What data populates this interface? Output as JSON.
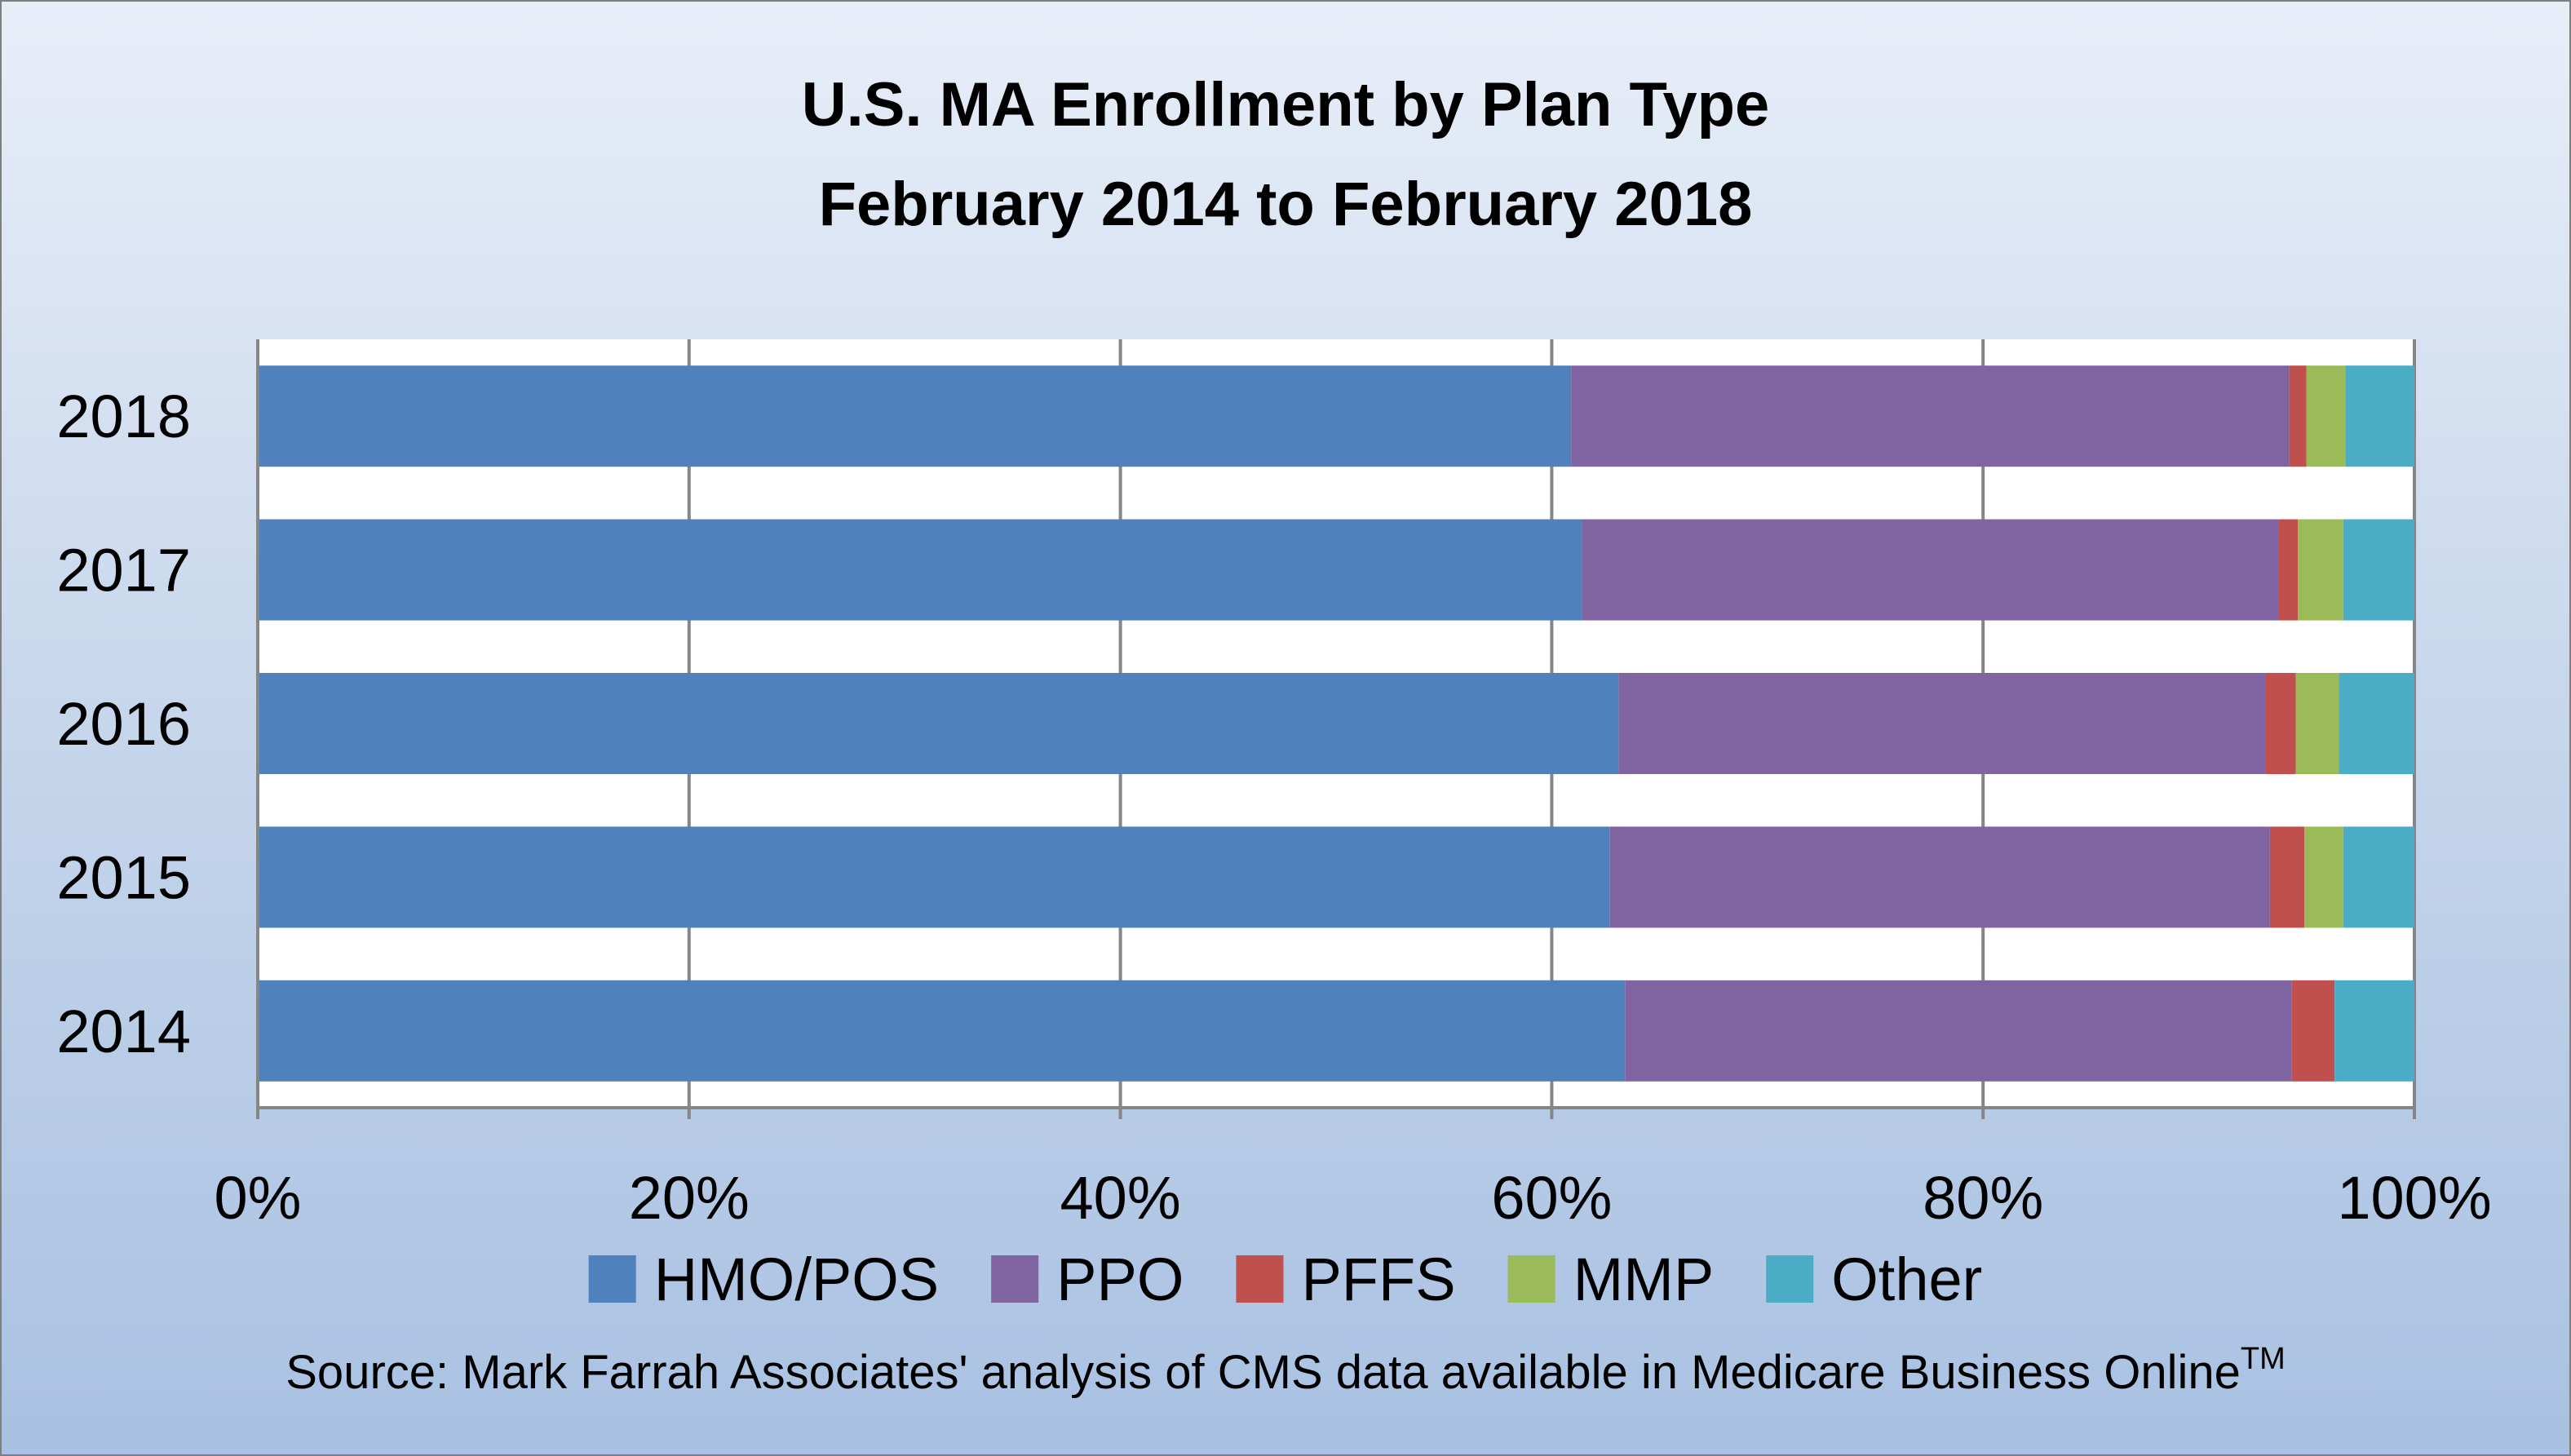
{
  "chart_data": {
    "type": "bar",
    "orientation": "horizontal",
    "stacked": "percent",
    "title_lines": [
      "U.S. MA Enrollment by Plan Type",
      "February 2014 to February 2018"
    ],
    "categories": [
      "2018",
      "2017",
      "2016",
      "2015",
      "2014"
    ],
    "series": [
      {
        "name": "HMO/POS",
        "color": "#4F81BD",
        "values": [
          60.9,
          61.4,
          63.1,
          62.7,
          63.4
        ]
      },
      {
        "name": "PPO",
        "color": "#8064A2",
        "values": [
          33.3,
          32.3,
          30.0,
          30.6,
          30.9
        ]
      },
      {
        "name": "PFFS",
        "color": "#C0504D",
        "values": [
          0.8,
          0.9,
          1.4,
          1.6,
          2.0
        ]
      },
      {
        "name": "MMP",
        "color": "#9BBB59",
        "values": [
          1.8,
          2.1,
          2.0,
          1.8,
          0.0
        ]
      },
      {
        "name": "Other",
        "color": "#4BACC6",
        "values": [
          3.2,
          3.3,
          3.5,
          3.3,
          3.7
        ]
      }
    ],
    "xticks": [
      "0%",
      "20%",
      "40%",
      "60%",
      "80%",
      "100%"
    ],
    "xlim": [
      0,
      100
    ],
    "grid": true,
    "legend": "bottom",
    "source_text": "Source: Mark Farrah Associates' analysis of CMS data available in Medicare Business Online",
    "source_superscript": "TM"
  }
}
